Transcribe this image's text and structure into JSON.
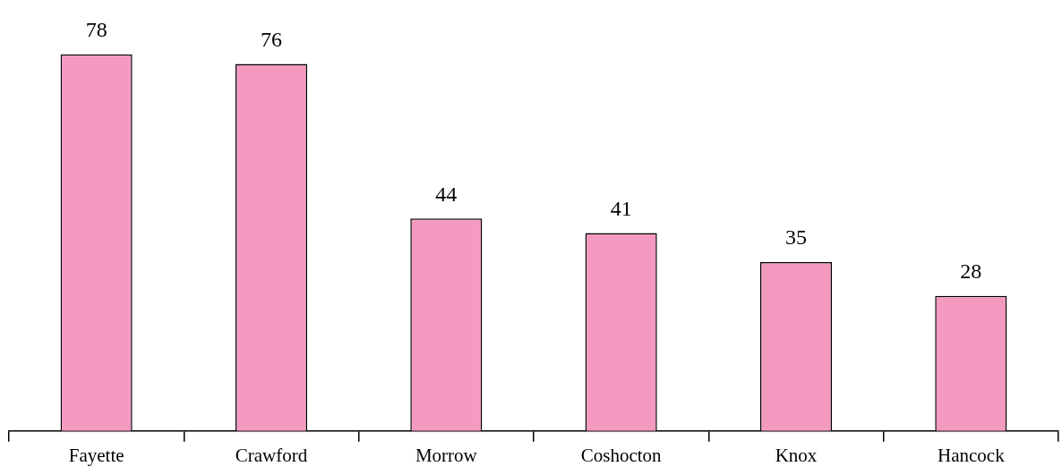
{
  "chart_data": {
    "type": "bar",
    "categories": [
      "Fayette",
      "Crawford",
      "Morrow",
      "Coshocton",
      "Knox",
      "Hancock"
    ],
    "values": [
      78,
      76,
      44,
      41,
      35,
      28
    ],
    "color": "#f49ac1",
    "data_labels": true,
    "grid": false,
    "legend": false
  }
}
